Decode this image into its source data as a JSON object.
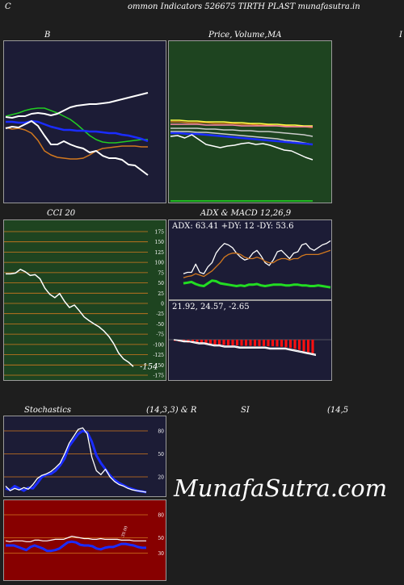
{
  "header": {
    "left_letter": "C",
    "title": "ommon  Indicators 526675 TIRTH PLAST munafasutra.in"
  },
  "titles": {
    "bollinger": "B",
    "price_ma_a": "Price,",
    "price_ma_b": "Volume,",
    "price_ma_c": "MA",
    "right_edge": "I",
    "cci": "CCI 20",
    "adx_macd": "ADX  & MACD 12,26,9",
    "stochastics": "Stochastics",
    "stoch_params": "(14,3,3) & R",
    "rsi": "SI",
    "rsi_params": "(14,5"
  },
  "watermark": "MunafaSutra.com",
  "colors": {
    "navy_bg": "#1c1c36",
    "green_bg": "#1e4420",
    "red_bg": "#870000",
    "orange": "#d2781e",
    "blue": "#1a2cff",
    "bright_green": "#22dd22",
    "white": "#ffffff",
    "red_bar": "#ff1010",
    "pink": "#ff88aa"
  },
  "chart_data": [
    {
      "id": "bollinger",
      "type": "line",
      "series": [
        {
          "color": "#22cc22",
          "values": [
            93,
            91,
            89,
            86,
            84,
            83,
            83,
            86,
            89,
            93,
            97,
            103,
            110,
            117,
            122,
            125,
            126,
            126,
            125,
            124,
            123,
            122,
            122
          ]
        },
        {
          "color": "#ffffff",
          "values": [
            94,
            95,
            93,
            93,
            90,
            89,
            90,
            92,
            90,
            86,
            82,
            80,
            79,
            78,
            78,
            77,
            76,
            74,
            72,
            70,
            68,
            66,
            64
          ]
        },
        {
          "color": "#1a2cff",
          "values": [
            100,
            100,
            101,
            101,
            99,
            100,
            103,
            106,
            108,
            110,
            110,
            111,
            111,
            112,
            112,
            113,
            114,
            114,
            116,
            117,
            119,
            121,
            124
          ]
        },
        {
          "color": "#d2781e",
          "values": [
            107,
            109,
            108,
            110,
            114,
            123,
            136,
            141,
            144,
            145,
            146,
            146,
            145,
            141,
            136,
            133,
            132,
            131,
            130,
            130,
            130,
            131,
            131
          ]
        },
        {
          "color": "#ffffff",
          "values": [
            108,
            106,
            107,
            103,
            99,
            105,
            117,
            128,
            128,
            124,
            128,
            131,
            133,
            138,
            136,
            142,
            145,
            145,
            147,
            153,
            154,
            160,
            166
          ]
        }
      ]
    },
    {
      "id": "price_ma",
      "type": "line",
      "series": [
        {
          "color": "#d2781e",
          "values": [
            30,
            30,
            31,
            31,
            31,
            32,
            32,
            32,
            33,
            33,
            34,
            34,
            35,
            35,
            36,
            36,
            37
          ]
        },
        {
          "color": "#ffff44",
          "values": [
            28,
            28,
            29,
            29,
            30,
            30,
            30,
            31,
            31,
            32,
            32,
            33,
            33,
            34,
            34,
            35,
            35
          ]
        },
        {
          "color": "#ff88aa",
          "values": [
            33,
            33,
            33,
            33,
            34,
            34,
            34,
            34,
            35,
            35,
            35,
            35,
            35,
            36,
            36,
            36,
            36
          ]
        },
        {
          "color": "#cccccc",
          "values": [
            38,
            38,
            38,
            38,
            39,
            39,
            40,
            40,
            41,
            41,
            42,
            42,
            43,
            44,
            45,
            46,
            48
          ]
        },
        {
          "color": "#cccccc",
          "values": [
            42,
            42,
            42,
            43,
            43,
            44,
            45,
            46,
            47,
            48,
            49,
            50,
            51,
            53,
            54,
            56,
            58
          ]
        },
        {
          "color": "#1a2cff",
          "values": [
            44,
            44,
            45,
            45,
            46,
            47,
            48,
            49,
            50,
            51,
            52,
            53,
            54,
            55,
            56,
            57,
            58
          ]
        },
        {
          "color": "#ffffff",
          "values": [
            48,
            47,
            50,
            46,
            52,
            58,
            60,
            62,
            60,
            59,
            57,
            56,
            58,
            57,
            59,
            62,
            65,
            66,
            70,
            74,
            77
          ]
        }
      ],
      "baseline_color": "#22dd22"
    },
    {
      "id": "cci",
      "type": "line",
      "title": "CCI 20",
      "ylim": [
        -175,
        175
      ],
      "ticks": [
        "175",
        "150",
        "125",
        "100",
        "75",
        "50",
        "25",
        "0",
        "-25",
        "-50",
        "-75",
        "-100",
        "-125",
        "-150",
        "-175"
      ],
      "tick_values": [
        175,
        150,
        125,
        100,
        75,
        50,
        25,
        0,
        -25,
        -50,
        -75,
        -100,
        -125,
        -150,
        -175
      ],
      "values": [
        72,
        72,
        74,
        83,
        77,
        68,
        70,
        60,
        37,
        22,
        14,
        24,
        5,
        -10,
        -4,
        -18,
        -33,
        -42,
        -50,
        -57,
        -67,
        -80,
        -98,
        -121,
        -135,
        -143,
        -154
      ],
      "last_label": "-154"
    },
    {
      "id": "adx",
      "type": "line",
      "legend": "ADX: 63.41  +DY: 12  -DY: 53.6",
      "series": [
        {
          "color": "#ffffff",
          "values": [
            28,
            30,
            30,
            42,
            30,
            28,
            38,
            44,
            58,
            66,
            72,
            70,
            66,
            58,
            52,
            48,
            50,
            58,
            62,
            54,
            44,
            40,
            48,
            60,
            62,
            56,
            50,
            58,
            60,
            70,
            72,
            65,
            62,
            66,
            70,
            72,
            76
          ]
        },
        {
          "color": "#d2781e",
          "values": [
            22,
            24,
            25,
            28,
            26,
            24,
            28,
            32,
            38,
            44,
            52,
            56,
            58,
            58,
            56,
            52,
            50,
            50,
            52,
            50,
            46,
            44,
            44,
            48,
            50,
            50,
            48,
            50,
            50,
            54,
            56,
            56,
            56,
            56,
            58,
            60,
            62
          ]
        },
        {
          "color": "#22dd22",
          "values": [
            14,
            15,
            16,
            13,
            11,
            10,
            14,
            18,
            17,
            14,
            13,
            12,
            11,
            10,
            11,
            10,
            12,
            12,
            13,
            11,
            10,
            11,
            12,
            12,
            12,
            11,
            11,
            12,
            12,
            11,
            11,
            10,
            10,
            11,
            10,
            9,
            8
          ]
        }
      ]
    },
    {
      "id": "macd",
      "type": "bar",
      "legend": "21.92,  24.57,  -2.65",
      "values": [
        -0.5,
        -0.8,
        -1,
        -1.2,
        -1.3,
        -1.4,
        -1.6,
        -1.8,
        -2,
        -2.1,
        -2.2,
        -2.2,
        -2.3,
        -2.4,
        -2.4,
        -2.5,
        -2.5,
        -2.5,
        -2.6,
        -2.6,
        -2.6,
        -2.7,
        -2.7,
        -2.8,
        -2.9,
        -3.1,
        -3.4,
        -3.8,
        -4.2,
        -4.8,
        -5.4,
        -5.9
      ],
      "lines": [
        [
          0,
          -0.5,
          -1,
          -1.5,
          -2,
          -3,
          -3,
          -4,
          -5,
          -5,
          -6,
          -6,
          -6,
          -7,
          -7,
          -7,
          -7,
          -7,
          -7,
          -8,
          -8,
          -8,
          -8,
          -9,
          -10,
          -11,
          -12,
          -13,
          -14
        ],
        [
          0,
          -1,
          -2,
          -2,
          -3,
          -4,
          -4,
          -5,
          -6,
          -6,
          -7,
          -7,
          -7,
          -8,
          -8,
          -8,
          -8,
          -8,
          -8,
          -9,
          -9,
          -9,
          -9,
          -10,
          -11,
          -12,
          -13,
          -14,
          -15
        ]
      ]
    },
    {
      "id": "stochastics",
      "type": "line",
      "ticks": [
        "80",
        "50",
        "20"
      ],
      "tick_values": [
        80,
        50,
        20
      ],
      "series": [
        {
          "color": "#1a2cff",
          "values": [
            5,
            3,
            8,
            5,
            2,
            6,
            5,
            12,
            20,
            23,
            24,
            28,
            35,
            44,
            60,
            68,
            76,
            80,
            78,
            66,
            48,
            38,
            30,
            22,
            16,
            12,
            9,
            6,
            4,
            2,
            1,
            0
          ]
        },
        {
          "color": "#ffffff",
          "values": [
            8,
            2,
            5,
            3,
            6,
            4,
            10,
            18,
            22,
            24,
            27,
            32,
            38,
            50,
            64,
            73,
            82,
            84,
            76,
            46,
            28,
            23,
            30,
            20,
            14,
            10,
            8,
            5,
            3,
            2,
            1,
            0
          ]
        }
      ]
    },
    {
      "id": "rsi",
      "type": "line",
      "ticks": [
        "80",
        "50",
        "30"
      ],
      "tick_values": [
        80,
        50,
        30
      ],
      "rsi_label": "39.00",
      "series": [
        {
          "color": "#ffffff",
          "values": [
            46,
            45,
            46,
            46,
            46,
            45,
            45,
            47,
            47,
            46,
            46,
            47,
            48,
            48,
            48,
            50,
            52,
            51,
            50,
            49,
            49,
            48,
            48,
            49,
            48,
            48,
            48,
            48,
            47,
            47,
            47,
            46,
            46,
            46,
            46
          ]
        },
        {
          "color": "#1a2cff",
          "values": [
            40,
            40,
            40,
            38,
            36,
            34,
            38,
            40,
            38,
            36,
            33,
            33,
            34,
            36,
            40,
            44,
            45,
            44,
            41,
            40,
            40,
            39,
            36,
            35,
            37,
            38,
            38,
            40,
            42,
            42,
            41,
            40,
            38,
            37,
            37
          ]
        }
      ]
    }
  ]
}
